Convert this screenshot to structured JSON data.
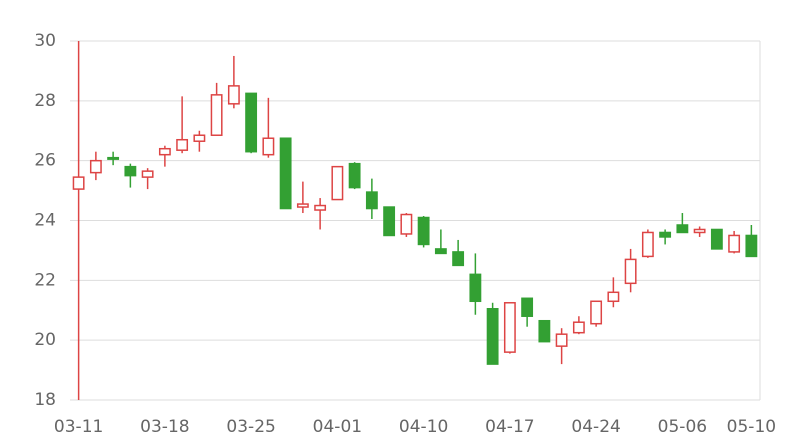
{
  "chart_data": {
    "type": "candlestick",
    "categories": [
      "03-11",
      null,
      null,
      null,
      null,
      "03-18",
      null,
      null,
      null,
      null,
      "03-25",
      null,
      null,
      null,
      null,
      "04-01",
      null,
      null,
      null,
      null,
      "04-10",
      null,
      null,
      null,
      null,
      "04-17",
      null,
      null,
      null,
      null,
      "04-24",
      null,
      null,
      null,
      null,
      "05-06",
      null,
      null,
      null,
      "05-10"
    ],
    "open": [
      25.05,
      25.6,
      26.1,
      25.8,
      25.45,
      26.2,
      26.35,
      26.65,
      26.85,
      27.9,
      28.25,
      26.2,
      26.75,
      24.45,
      24.35,
      24.7,
      25.9,
      24.95,
      24.45,
      23.55,
      24.1,
      23.05,
      22.95,
      22.2,
      21.05,
      19.6,
      21.4,
      20.65,
      19.8,
      20.25,
      20.55,
      21.3,
      21.9,
      22.8,
      23.6,
      23.85,
      23.6,
      23.7,
      22.95,
      23.5
    ],
    "high": [
      30,
      26.3,
      26.3,
      25.9,
      25.75,
      26.5,
      28.15,
      27.0,
      28.6,
      29.5,
      28.25,
      28.1,
      26.75,
      25.3,
      24.75,
      25.8,
      25.95,
      25.4,
      24.45,
      24.25,
      24.15,
      23.7,
      23.35,
      22.9,
      21.25,
      21.25,
      21.4,
      20.65,
      20.4,
      20.8,
      21.3,
      22.1,
      23.05,
      23.7,
      23.7,
      24.25,
      23.8,
      23.7,
      23.65,
      23.85
    ],
    "low": [
      18,
      25.35,
      25.85,
      25.1,
      25.05,
      25.8,
      26.25,
      26.3,
      26.85,
      27.75,
      26.25,
      26.1,
      24.4,
      24.25,
      23.7,
      24.7,
      25.05,
      24.05,
      23.5,
      23.45,
      23.1,
      22.9,
      22.5,
      20.85,
      19.2,
      19.55,
      20.45,
      19.95,
      19.2,
      20.2,
      20.45,
      21.1,
      21.6,
      22.75,
      23.2,
      23.6,
      23.45,
      23.05,
      22.9,
      22.8
    ],
    "close": [
      25.45,
      26.0,
      26.05,
      25.5,
      25.65,
      26.4,
      26.7,
      26.85,
      28.2,
      28.5,
      26.3,
      26.75,
      24.4,
      24.55,
      24.5,
      25.8,
      25.1,
      24.4,
      23.5,
      24.2,
      23.2,
      22.9,
      22.5,
      21.3,
      19.2,
      21.25,
      20.8,
      19.95,
      20.2,
      20.6,
      21.3,
      21.6,
      22.7,
      23.6,
      23.45,
      23.6,
      23.7,
      23.05,
      23.5,
      22.8
    ],
    "up_color": "#dd4444",
    "down_color": "#33a033",
    "ylim": [
      18,
      30
    ],
    "yticks": [
      18,
      20,
      22,
      24,
      26,
      28,
      30
    ],
    "grid": true
  }
}
